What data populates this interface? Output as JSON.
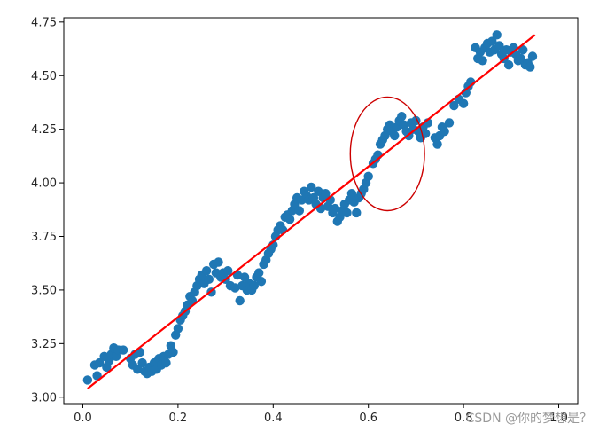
{
  "chart_data": {
    "type": "scatter",
    "title": "",
    "xlabel": "",
    "ylabel": "",
    "xlim": [
      -0.04,
      1.04
    ],
    "ylim": [
      2.97,
      4.77
    ],
    "x_ticks": [
      0.0,
      0.2,
      0.4,
      0.6,
      0.8,
      1.0
    ],
    "x_tick_labels": [
      "0.0",
      "0.2",
      "0.4",
      "0.6",
      "0.8",
      "1.0"
    ],
    "y_ticks": [
      3.0,
      3.25,
      3.5,
      3.75,
      4.0,
      4.25,
      4.5,
      4.75
    ],
    "y_tick_labels": [
      "3.00",
      "3.25",
      "3.50",
      "3.75",
      "4.00",
      "4.25",
      "4.50",
      "4.75"
    ],
    "grid": false,
    "series": [
      {
        "kind": "scatter",
        "color": "#1f77b4",
        "points": [
          [
            0.01,
            3.08
          ],
          [
            0.025,
            3.15
          ],
          [
            0.03,
            3.1
          ],
          [
            0.035,
            3.16
          ],
          [
            0.045,
            3.19
          ],
          [
            0.05,
            3.14
          ],
          [
            0.055,
            3.17
          ],
          [
            0.06,
            3.2
          ],
          [
            0.065,
            3.23
          ],
          [
            0.07,
            3.19
          ],
          [
            0.075,
            3.22
          ],
          [
            0.085,
            3.22
          ],
          [
            0.1,
            3.18
          ],
          [
            0.105,
            3.15
          ],
          [
            0.11,
            3.2
          ],
          [
            0.115,
            3.13
          ],
          [
            0.12,
            3.21
          ],
          [
            0.125,
            3.16
          ],
          [
            0.13,
            3.12
          ],
          [
            0.135,
            3.11
          ],
          [
            0.14,
            3.14
          ],
          [
            0.145,
            3.12
          ],
          [
            0.15,
            3.16
          ],
          [
            0.155,
            3.13
          ],
          [
            0.16,
            3.18
          ],
          [
            0.165,
            3.15
          ],
          [
            0.17,
            3.19
          ],
          [
            0.175,
            3.16
          ],
          [
            0.18,
            3.2
          ],
          [
            0.185,
            3.24
          ],
          [
            0.19,
            3.21
          ],
          [
            0.195,
            3.29
          ],
          [
            0.2,
            3.32
          ],
          [
            0.205,
            3.36
          ],
          [
            0.21,
            3.38
          ],
          [
            0.215,
            3.4
          ],
          [
            0.22,
            3.43
          ],
          [
            0.225,
            3.47
          ],
          [
            0.23,
            3.45
          ],
          [
            0.235,
            3.49
          ],
          [
            0.24,
            3.52
          ],
          [
            0.245,
            3.55
          ],
          [
            0.25,
            3.57
          ],
          [
            0.255,
            3.53
          ],
          [
            0.26,
            3.59
          ],
          [
            0.265,
            3.55
          ],
          [
            0.27,
            3.49
          ],
          [
            0.275,
            3.62
          ],
          [
            0.28,
            3.58
          ],
          [
            0.285,
            3.63
          ],
          [
            0.29,
            3.56
          ],
          [
            0.295,
            3.58
          ],
          [
            0.3,
            3.55
          ],
          [
            0.305,
            3.59
          ],
          [
            0.31,
            3.52
          ],
          [
            0.32,
            3.51
          ],
          [
            0.325,
            3.57
          ],
          [
            0.33,
            3.45
          ],
          [
            0.335,
            3.52
          ],
          [
            0.34,
            3.56
          ],
          [
            0.345,
            3.5
          ],
          [
            0.35,
            3.53
          ],
          [
            0.355,
            3.5
          ],
          [
            0.36,
            3.52
          ],
          [
            0.365,
            3.56
          ],
          [
            0.37,
            3.58
          ],
          [
            0.375,
            3.54
          ],
          [
            0.38,
            3.62
          ],
          [
            0.385,
            3.64
          ],
          [
            0.39,
            3.67
          ],
          [
            0.395,
            3.69
          ],
          [
            0.4,
            3.71
          ],
          [
            0.405,
            3.75
          ],
          [
            0.41,
            3.78
          ],
          [
            0.415,
            3.8
          ],
          [
            0.42,
            3.78
          ],
          [
            0.425,
            3.84
          ],
          [
            0.43,
            3.85
          ],
          [
            0.435,
            3.83
          ],
          [
            0.44,
            3.87
          ],
          [
            0.445,
            3.9
          ],
          [
            0.45,
            3.93
          ],
          [
            0.455,
            3.87
          ],
          [
            0.46,
            3.92
          ],
          [
            0.465,
            3.96
          ],
          [
            0.47,
            3.94
          ],
          [
            0.475,
            3.92
          ],
          [
            0.48,
            3.98
          ],
          [
            0.485,
            3.93
          ],
          [
            0.49,
            3.9
          ],
          [
            0.495,
            3.96
          ],
          [
            0.5,
            3.88
          ],
          [
            0.505,
            3.93
          ],
          [
            0.51,
            3.95
          ],
          [
            0.515,
            3.89
          ],
          [
            0.52,
            3.92
          ],
          [
            0.525,
            3.86
          ],
          [
            0.53,
            3.88
          ],
          [
            0.535,
            3.82
          ],
          [
            0.54,
            3.84
          ],
          [
            0.545,
            3.87
          ],
          [
            0.55,
            3.9
          ],
          [
            0.555,
            3.86
          ],
          [
            0.56,
            3.92
          ],
          [
            0.565,
            3.95
          ],
          [
            0.57,
            3.91
          ],
          [
            0.575,
            3.86
          ],
          [
            0.58,
            3.93
          ],
          [
            0.585,
            3.95
          ],
          [
            0.59,
            3.97
          ],
          [
            0.595,
            4.0
          ],
          [
            0.6,
            4.03
          ],
          [
            0.61,
            4.09
          ],
          [
            0.615,
            4.11
          ],
          [
            0.62,
            4.13
          ],
          [
            0.625,
            4.18
          ],
          [
            0.63,
            4.2
          ],
          [
            0.635,
            4.22
          ],
          [
            0.64,
            4.25
          ],
          [
            0.645,
            4.27
          ],
          [
            0.65,
            4.24
          ],
          [
            0.655,
            4.22
          ],
          [
            0.66,
            4.26
          ],
          [
            0.665,
            4.29
          ],
          [
            0.67,
            4.31
          ],
          [
            0.675,
            4.27
          ],
          [
            0.68,
            4.24
          ],
          [
            0.685,
            4.22
          ],
          [
            0.69,
            4.28
          ],
          [
            0.695,
            4.25
          ],
          [
            0.7,
            4.29
          ],
          [
            0.705,
            4.24
          ],
          [
            0.71,
            4.21
          ],
          [
            0.715,
            4.26
          ],
          [
            0.72,
            4.23
          ],
          [
            0.725,
            4.28
          ],
          [
            0.74,
            4.21
          ],
          [
            0.745,
            4.18
          ],
          [
            0.75,
            4.22
          ],
          [
            0.755,
            4.26
          ],
          [
            0.76,
            4.24
          ],
          [
            0.77,
            4.28
          ],
          [
            0.78,
            4.36
          ],
          [
            0.79,
            4.39
          ],
          [
            0.8,
            4.37
          ],
          [
            0.805,
            4.42
          ],
          [
            0.81,
            4.45
          ],
          [
            0.815,
            4.47
          ],
          [
            0.825,
            4.63
          ],
          [
            0.83,
            4.58
          ],
          [
            0.835,
            4.61
          ],
          [
            0.84,
            4.57
          ],
          [
            0.845,
            4.63
          ],
          [
            0.85,
            4.65
          ],
          [
            0.855,
            4.61
          ],
          [
            0.86,
            4.66
          ],
          [
            0.865,
            4.62
          ],
          [
            0.87,
            4.69
          ],
          [
            0.875,
            4.64
          ],
          [
            0.88,
            4.6
          ],
          [
            0.885,
            4.58
          ],
          [
            0.89,
            4.62
          ],
          [
            0.895,
            4.55
          ],
          [
            0.9,
            4.61
          ],
          [
            0.905,
            4.63
          ],
          [
            0.91,
            4.6
          ],
          [
            0.915,
            4.57
          ],
          [
            0.92,
            4.58
          ],
          [
            0.925,
            4.62
          ],
          [
            0.93,
            4.55
          ],
          [
            0.935,
            4.56
          ],
          [
            0.94,
            4.54
          ],
          [
            0.945,
            4.59
          ]
        ]
      },
      {
        "kind": "line",
        "color": "#ff0000",
        "points": [
          [
            0.01,
            3.04
          ],
          [
            0.95,
            4.69
          ]
        ]
      }
    ],
    "annotations": [
      {
        "kind": "ellipse",
        "color": "#cc0000",
        "cx": 0.64,
        "cy": 4.135,
        "rx": 0.078,
        "ry": 0.265
      }
    ]
  },
  "watermark": "CSDN @你的梦想是？"
}
